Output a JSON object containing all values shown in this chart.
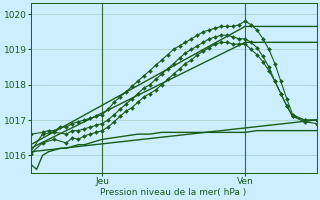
{
  "xlabel": "Pression niveau de la mer( hPa )",
  "bg_color": "#cceeff",
  "grid_color": "#aad4d4",
  "line_color": "#1a5c1a",
  "vline_color": "#3a6a3a",
  "ylim": [
    1015.5,
    1020.3
  ],
  "yticks": [
    1016,
    1017,
    1018,
    1019,
    1020
  ],
  "xlim": [
    0,
    48
  ],
  "xtick_positions": [
    12,
    36
  ],
  "xtick_labels": [
    "Jeu",
    "Ven"
  ],
  "vlines": [
    12,
    36
  ],
  "series": [
    {
      "x": [
        0,
        1,
        2,
        3,
        4,
        5,
        6,
        7,
        8,
        9,
        10,
        11,
        12,
        14,
        16,
        18,
        20,
        22,
        24,
        26,
        28,
        30,
        32,
        34,
        36,
        38,
        40,
        42,
        44,
        46,
        48
      ],
      "y": [
        1015.75,
        1015.6,
        1016.0,
        1016.1,
        1016.15,
        1016.2,
        1016.2,
        1016.25,
        1016.3,
        1016.3,
        1016.35,
        1016.4,
        1016.45,
        1016.5,
        1016.55,
        1016.6,
        1016.6,
        1016.65,
        1016.65,
        1016.65,
        1016.65,
        1016.65,
        1016.65,
        1016.65,
        1016.65,
        1016.7,
        1016.7,
        1016.7,
        1016.7,
        1016.7,
        1016.7
      ],
      "marker": null,
      "ms": 0,
      "lw": 1.0
    },
    {
      "x": [
        0,
        48
      ],
      "y": [
        1016.1,
        1017.0
      ],
      "marker": null,
      "ms": 0,
      "lw": 1.0
    },
    {
      "x": [
        0,
        36,
        48
      ],
      "y": [
        1016.2,
        1019.2,
        1019.2
      ],
      "marker": null,
      "ms": 0,
      "lw": 1.0
    },
    {
      "x": [
        0,
        36,
        48
      ],
      "y": [
        1016.3,
        1019.65,
        1019.65
      ],
      "marker": null,
      "ms": 0,
      "lw": 1.0
    },
    {
      "x": [
        0,
        2,
        4,
        6,
        7,
        8,
        9,
        10,
        11,
        12,
        13,
        14,
        15,
        16,
        17,
        18,
        19,
        20,
        21,
        22,
        23,
        24,
        25,
        26,
        27,
        28,
        29,
        30,
        31,
        32,
        33,
        34,
        35,
        36,
        37,
        38,
        39,
        40,
        41,
        42,
        43,
        44,
        46,
        48
      ],
      "y": [
        1016.05,
        1016.35,
        1016.45,
        1016.35,
        1016.5,
        1016.45,
        1016.55,
        1016.6,
        1016.65,
        1016.7,
        1016.8,
        1016.95,
        1017.1,
        1017.25,
        1017.35,
        1017.5,
        1017.65,
        1017.75,
        1017.85,
        1018.0,
        1018.15,
        1018.3,
        1018.45,
        1018.6,
        1018.7,
        1018.85,
        1018.95,
        1019.05,
        1019.15,
        1019.2,
        1019.2,
        1019.15,
        1019.15,
        1019.15,
        1019.0,
        1018.85,
        1018.65,
        1018.4,
        1018.1,
        1017.75,
        1017.4,
        1017.1,
        1017.0,
        1017.0
      ],
      "marker": "D",
      "ms": 2.0,
      "lw": 0.8
    },
    {
      "x": [
        0,
        2,
        3,
        4,
        5,
        6,
        7,
        8,
        9,
        10,
        11,
        12,
        13,
        14,
        15,
        16,
        17,
        18,
        19,
        20,
        21,
        22,
        23,
        24,
        25,
        26,
        27,
        28,
        29,
        30,
        31,
        32,
        33,
        34,
        35,
        36,
        37,
        38,
        39,
        40,
        41,
        42,
        43,
        44,
        46,
        48
      ],
      "y": [
        1016.6,
        1016.65,
        1016.7,
        1016.7,
        1016.8,
        1016.8,
        1016.9,
        1016.95,
        1017.0,
        1017.05,
        1017.1,
        1017.15,
        1017.3,
        1017.5,
        1017.65,
        1017.8,
        1017.95,
        1018.1,
        1018.25,
        1018.4,
        1018.55,
        1018.7,
        1018.85,
        1019.0,
        1019.1,
        1019.2,
        1019.3,
        1019.4,
        1019.5,
        1019.55,
        1019.6,
        1019.65,
        1019.65,
        1019.65,
        1019.7,
        1019.8,
        1019.7,
        1019.55,
        1019.3,
        1019.0,
        1018.6,
        1018.1,
        1017.6,
        1017.15,
        1017.0,
        1017.0
      ],
      "marker": "D",
      "ms": 2.0,
      "lw": 0.8
    },
    {
      "x": [
        0,
        2,
        4,
        6,
        7,
        8,
        9,
        10,
        11,
        12,
        13,
        14,
        15,
        16,
        17,
        18,
        19,
        20,
        21,
        22,
        23,
        24,
        25,
        26,
        27,
        28,
        29,
        30,
        31,
        32,
        33,
        34,
        35,
        36,
        37,
        38,
        39,
        40,
        41,
        42,
        43,
        44,
        46,
        48
      ],
      "y": [
        1016.1,
        1016.6,
        1016.65,
        1016.6,
        1016.7,
        1016.7,
        1016.75,
        1016.8,
        1016.85,
        1016.9,
        1017.0,
        1017.15,
        1017.3,
        1017.45,
        1017.6,
        1017.75,
        1017.9,
        1018.0,
        1018.15,
        1018.3,
        1018.45,
        1018.6,
        1018.75,
        1018.9,
        1019.0,
        1019.1,
        1019.2,
        1019.3,
        1019.35,
        1019.4,
        1019.4,
        1019.35,
        1019.3,
        1019.3,
        1019.2,
        1019.05,
        1018.8,
        1018.5,
        1018.1,
        1017.75,
        1017.4,
        1017.1,
        1016.95,
        1016.9
      ],
      "marker": "D",
      "ms": 2.0,
      "lw": 0.8
    }
  ]
}
